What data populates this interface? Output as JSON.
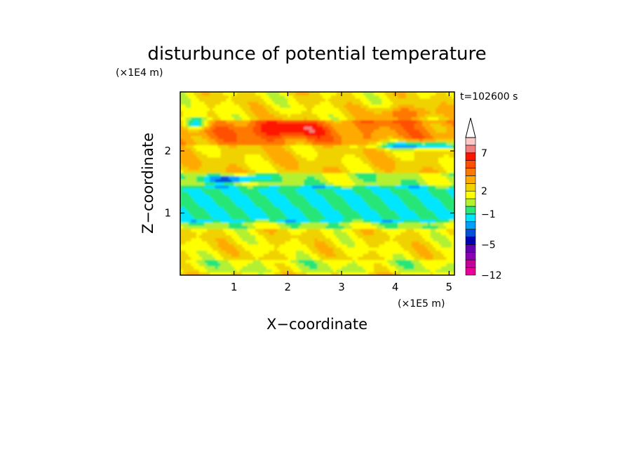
{
  "chart_data": {
    "type": "heatmap",
    "title": "disturbunce of potential temperature",
    "time_label": "t=102600 s",
    "xlabel": "X−coordinate",
    "ylabel": "Z−coordinate",
    "x_scale_label": "(×1E5 m)",
    "y_scale_label": "(×1E4 m)",
    "xlim": [
      0,
      5.1
    ],
    "ylim": [
      0,
      2.95
    ],
    "x_ticks": [
      {
        "value": 1,
        "label": "1"
      },
      {
        "value": 2,
        "label": "2"
      },
      {
        "value": 3,
        "label": "3"
      },
      {
        "value": 4,
        "label": "4"
      },
      {
        "value": 5,
        "label": "5"
      }
    ],
    "y_ticks": [
      {
        "value": 1,
        "label": "1"
      },
      {
        "value": 2,
        "label": "2"
      }
    ],
    "colorbar": {
      "levels": [
        -12,
        -10,
        -8,
        -6,
        -5,
        -4,
        -3,
        -2,
        -1,
        0,
        1,
        2,
        3,
        4,
        5,
        6,
        7,
        8,
        9
      ],
      "colors": [
        "#e8009a",
        "#c8009a",
        "#8c00b4",
        "#6400b4",
        "#0000b4",
        "#0050dc",
        "#00a0ff",
        "#00e6ff",
        "#28e678",
        "#b4f032",
        "#ffff00",
        "#f0d200",
        "#ffaa00",
        "#ff7800",
        "#ff5000",
        "#ff1400",
        "#f08080",
        "#ffc8c8"
      ],
      "extend": "max",
      "labels": [
        {
          "value": -12,
          "label": "−12"
        },
        {
          "value": -5,
          "label": "−5"
        },
        {
          "value": -1,
          "label": "−1"
        },
        {
          "value": 2,
          "label": "2"
        },
        {
          "value": 7,
          "label": "7"
        }
      ]
    },
    "field_description_bands": [
      {
        "z": [
          0.05,
          0.25
        ],
        "value": 1.0
      },
      {
        "z": [
          0.25,
          0.75
        ],
        "value": 2.0
      },
      {
        "z": [
          0.75,
          0.85
        ],
        "value": 0.5
      },
      {
        "z": [
          0.85,
          1.45
        ],
        "value": -1.0
      },
      {
        "z": [
          1.45,
          1.65
        ],
        "value": 0.5
      },
      {
        "z": [
          1.65,
          2.1
        ],
        "value": 2.5
      },
      {
        "z": [
          2.1,
          2.5
        ],
        "value": 4.0
      },
      {
        "z": [
          2.5,
          2.95
        ],
        "value": 2.0
      }
    ]
  }
}
